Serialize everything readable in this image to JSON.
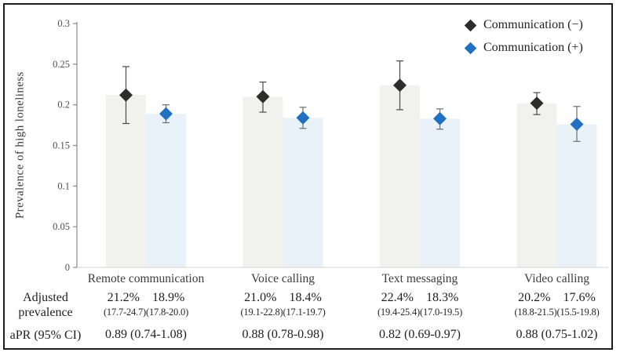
{
  "chart_data": {
    "type": "bar",
    "title": "",
    "xlabel": "",
    "ylabel": "Prevalence of high loneliness",
    "ylim": [
      0,
      0.3
    ],
    "y_ticks": [
      0,
      0.05,
      0.1,
      0.15,
      0.2,
      0.25,
      0.3
    ],
    "y_tick_labels": [
      "0",
      "0.05",
      "0.1",
      "0.15",
      "0.2",
      "0.25",
      "0.3"
    ],
    "grid": false,
    "legend_position": "top-right",
    "categories": [
      "Remote communication",
      "Voice calling",
      "Text messaging",
      "Video calling"
    ],
    "series": [
      {
        "name": "Communication (−)",
        "marker_color": "#2d2d2d",
        "bar_color": "#f1f1ee",
        "error_color": "#4a4a4a",
        "values": [
          0.212,
          0.21,
          0.224,
          0.202
        ],
        "ci_low": [
          0.177,
          0.191,
          0.194,
          0.188
        ],
        "ci_high": [
          0.247,
          0.228,
          0.254,
          0.215
        ]
      },
      {
        "name": "Communication (+)",
        "marker_color": "#2170c2",
        "bar_color": "#e9f1f9",
        "error_color": "#6e6e6e",
        "values": [
          0.189,
          0.184,
          0.183,
          0.176
        ],
        "ci_low": [
          0.178,
          0.171,
          0.17,
          0.155
        ],
        "ci_high": [
          0.2,
          0.197,
          0.195,
          0.198
        ]
      }
    ]
  },
  "table": {
    "adjusted_label_line1": "Adjusted",
    "adjusted_label_line2": "prevalence",
    "apr_label": "aPR (95% CI)",
    "groups": [
      {
        "category": "Remote communication",
        "neg_pct": "21.2%",
        "pos_pct": "18.9%",
        "neg_ci": "(17.7-24.7)",
        "pos_ci": "(17.8-20.0)",
        "apr": "0.89 (0.74-1.08)"
      },
      {
        "category": "Voice calling",
        "neg_pct": "21.0%",
        "pos_pct": "18.4%",
        "neg_ci": "(19.1-22.8)",
        "pos_ci": "(17.1-19.7)",
        "apr": "0.88 (0.78-0.98)"
      },
      {
        "category": "Text messaging",
        "neg_pct": "22.4%",
        "pos_pct": "18.3%",
        "neg_ci": "(19.4-25.4)",
        "pos_ci": "(17.0-19.5)",
        "apr": "0.82 (0.69-0.97)"
      },
      {
        "category": "Video calling",
        "neg_pct": "20.2%",
        "pos_pct": "17.6%",
        "neg_ci": "(18.8-21.5)",
        "pos_ci": "(15.5-19.8)",
        "apr": "0.88 (0.75-1.02)"
      }
    ]
  }
}
